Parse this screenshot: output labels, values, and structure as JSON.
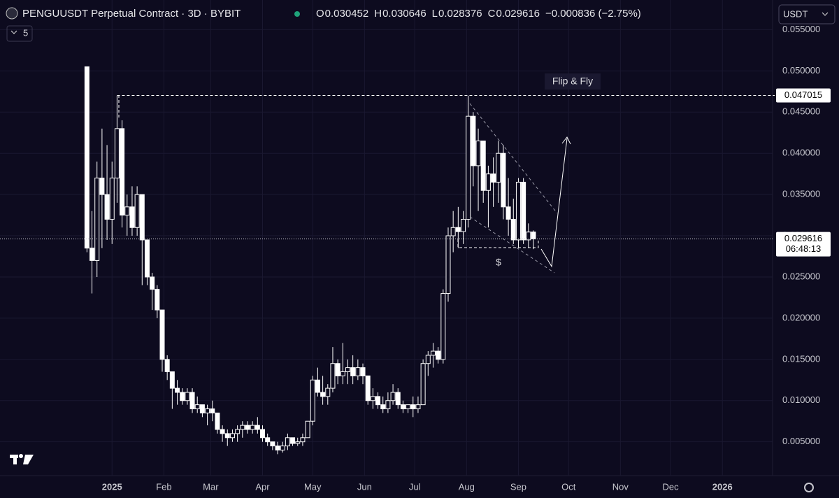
{
  "chart_data": {
    "type": "candlestick",
    "title": "PENGUUSDT Perpetual Contract · 3D · BYBIT",
    "ohlc_labels": [
      "O",
      "H",
      "L",
      "C"
    ],
    "ohlc_values": [
      0.030452,
      0.030646,
      0.028376,
      0.029616
    ],
    "change_text": "−0.000836 (−2.75%)",
    "indicator_count": "5",
    "currency": "USDT",
    "annotations": [
      "Flip & Fly",
      "$"
    ],
    "level": {
      "value": 0.047015,
      "label": "0.047015"
    },
    "last_price": {
      "value": 0.029616,
      "label": "0.029616"
    },
    "countdown": "06:48:13",
    "xlim": [
      -67,
      395
    ],
    "ylim": [
      0.0009,
      0.0586
    ],
    "grid": true,
    "color": "#ffffff",
    "xticks": [
      {
        "value": 0,
        "label": "2025"
      },
      {
        "value": 31,
        "label": "Feb"
      },
      {
        "value": 59,
        "label": "Mar"
      },
      {
        "value": 90,
        "label": "Apr"
      },
      {
        "value": 120,
        "label": "May"
      },
      {
        "value": 151,
        "label": "Jun"
      },
      {
        "value": 181,
        "label": "Jul"
      },
      {
        "value": 212,
        "label": "Aug"
      },
      {
        "value": 243,
        "label": "Sep"
      },
      {
        "value": 273,
        "label": "Oct"
      },
      {
        "value": 304,
        "label": "Nov"
      },
      {
        "value": 334,
        "label": "Dec"
      },
      {
        "value": 365,
        "label": "2026"
      }
    ],
    "yticks": [
      {
        "value": 0.005,
        "label": "0.005000"
      },
      {
        "value": 0.01,
        "label": "0.010000"
      },
      {
        "value": 0.015,
        "label": "0.015000"
      },
      {
        "value": 0.02,
        "label": "0.020000"
      },
      {
        "value": 0.025,
        "label": "0.025000"
      },
      {
        "value": 0.03,
        "label": "0.030000"
      },
      {
        "value": 0.035,
        "label": "0.035000"
      },
      {
        "value": 0.04,
        "label": "0.040000"
      },
      {
        "value": 0.045,
        "label": "0.045000"
      },
      {
        "value": 0.05,
        "label": "0.050000"
      },
      {
        "value": 0.055,
        "label": "0.055000"
      }
    ],
    "x": [
      -15,
      -12,
      -9,
      -6,
      -3,
      0,
      3,
      6,
      9,
      12,
      15,
      18,
      21,
      24,
      27,
      30,
      33,
      36,
      39,
      42,
      45,
      48,
      51,
      54,
      57,
      60,
      63,
      66,
      69,
      72,
      75,
      78,
      81,
      84,
      87,
      90,
      93,
      96,
      99,
      102,
      105,
      108,
      111,
      114,
      117,
      120,
      123,
      126,
      129,
      132,
      135,
      138,
      141,
      144,
      147,
      150,
      153,
      156,
      159,
      162,
      165,
      168,
      171,
      174,
      177,
      180,
      183,
      186,
      189,
      192,
      195,
      198,
      201,
      204,
      207,
      210,
      213,
      216,
      219,
      222,
      225,
      228,
      231,
      234,
      237,
      240,
      243,
      246,
      249,
      252
    ],
    "open": [
      0.0505,
      0.0285,
      0.027,
      0.037,
      0.035,
      0.032,
      0.037,
      0.043,
      0.0325,
      0.0335,
      0.031,
      0.035,
      0.0295,
      0.025,
      0.0235,
      0.021,
      0.015,
      0.0135,
      0.0115,
      0.011,
      0.01,
      0.011,
      0.009,
      0.0095,
      0.0085,
      0.009,
      0.0085,
      0.0065,
      0.006,
      0.0055,
      0.006,
      0.0065,
      0.007,
      0.0065,
      0.007,
      0.0065,
      0.0055,
      0.005,
      0.0045,
      0.004,
      0.0045,
      0.0055,
      0.0048,
      0.005,
      0.0055,
      0.0075,
      0.0125,
      0.011,
      0.0105,
      0.0115,
      0.0145,
      0.013,
      0.0135,
      0.014,
      0.013,
      0.014,
      0.013,
      0.01,
      0.0105,
      0.0095,
      0.009,
      0.01,
      0.011,
      0.0095,
      0.009,
      0.0095,
      0.009,
      0.0095,
      0.0145,
      0.0155,
      0.016,
      0.015,
      0.023,
      0.03,
      0.031,
      0.0305,
      0.032,
      0.0445,
      0.0385,
      0.0415,
      0.0355,
      0.0375,
      0.0365,
      0.04,
      0.0335,
      0.032,
      0.0295,
      0.0365,
      0.0295,
      0.030452
    ],
    "high": [
      0.0505,
      0.033,
      0.039,
      0.043,
      0.041,
      0.039,
      0.047,
      0.044,
      0.035,
      0.036,
      0.036,
      0.035,
      0.0295,
      0.0255,
      0.024,
      0.021,
      0.0155,
      0.0135,
      0.0125,
      0.0115,
      0.0115,
      0.0115,
      0.0105,
      0.0095,
      0.0095,
      0.01,
      0.0085,
      0.007,
      0.0065,
      0.0065,
      0.007,
      0.0075,
      0.0075,
      0.0075,
      0.008,
      0.007,
      0.006,
      0.005,
      0.005,
      0.005,
      0.006,
      0.0055,
      0.0055,
      0.006,
      0.0075,
      0.013,
      0.014,
      0.013,
      0.012,
      0.0165,
      0.015,
      0.017,
      0.015,
      0.0155,
      0.015,
      0.0145,
      0.013,
      0.0115,
      0.011,
      0.0105,
      0.011,
      0.012,
      0.0115,
      0.01,
      0.0095,
      0.0105,
      0.0105,
      0.015,
      0.016,
      0.017,
      0.0165,
      0.0235,
      0.031,
      0.033,
      0.0335,
      0.033,
      0.047,
      0.045,
      0.043,
      0.0415,
      0.0385,
      0.0395,
      0.0415,
      0.041,
      0.037,
      0.0345,
      0.037,
      0.037,
      0.0315,
      0.030646
    ],
    "low": [
      0.028,
      0.023,
      0.025,
      0.0285,
      0.0295,
      0.029,
      0.034,
      0.031,
      0.03,
      0.03,
      0.03,
      0.024,
      0.024,
      0.021,
      0.02,
      0.0135,
      0.0125,
      0.009,
      0.0095,
      0.0095,
      0.0095,
      0.0085,
      0.0085,
      0.008,
      0.007,
      0.0075,
      0.006,
      0.005,
      0.0045,
      0.005,
      0.005,
      0.0055,
      0.006,
      0.006,
      0.006,
      0.005,
      0.0045,
      0.004,
      0.0035,
      0.0037,
      0.004,
      0.0045,
      0.0045,
      0.0045,
      0.0055,
      0.007,
      0.0105,
      0.0095,
      0.0095,
      0.011,
      0.012,
      0.012,
      0.012,
      0.012,
      0.0125,
      0.012,
      0.0095,
      0.009,
      0.009,
      0.0085,
      0.0085,
      0.0095,
      0.009,
      0.0085,
      0.0085,
      0.008,
      0.0085,
      0.0095,
      0.013,
      0.014,
      0.0145,
      0.0145,
      0.022,
      0.028,
      0.0285,
      0.029,
      0.031,
      0.036,
      0.033,
      0.034,
      0.031,
      0.0335,
      0.034,
      0.032,
      0.03,
      0.029,
      0.0285,
      0.029,
      0.0285,
      0.028376
    ],
    "close": [
      0.0285,
      0.027,
      0.037,
      0.035,
      0.032,
      0.037,
      0.043,
      0.0325,
      0.0335,
      0.031,
      0.035,
      0.0295,
      0.025,
      0.0235,
      0.021,
      0.015,
      0.0135,
      0.0115,
      0.011,
      0.01,
      0.011,
      0.009,
      0.0095,
      0.0085,
      0.009,
      0.0085,
      0.0065,
      0.006,
      0.0055,
      0.006,
      0.0065,
      0.007,
      0.0065,
      0.007,
      0.0065,
      0.0055,
      0.005,
      0.0045,
      0.004,
      0.0045,
      0.0055,
      0.0048,
      0.005,
      0.0055,
      0.0075,
      0.0125,
      0.011,
      0.0105,
      0.0115,
      0.0145,
      0.013,
      0.0135,
      0.014,
      0.013,
      0.014,
      0.013,
      0.01,
      0.0105,
      0.0095,
      0.009,
      0.01,
      0.011,
      0.0095,
      0.009,
      0.0095,
      0.009,
      0.0095,
      0.0145,
      0.0155,
      0.016,
      0.015,
      0.023,
      0.03,
      0.031,
      0.0305,
      0.032,
      0.0445,
      0.0385,
      0.0415,
      0.0355,
      0.0375,
      0.0365,
      0.04,
      0.0335,
      0.032,
      0.0295,
      0.0365,
      0.0295,
      0.030452,
      0.029616
    ]
  }
}
